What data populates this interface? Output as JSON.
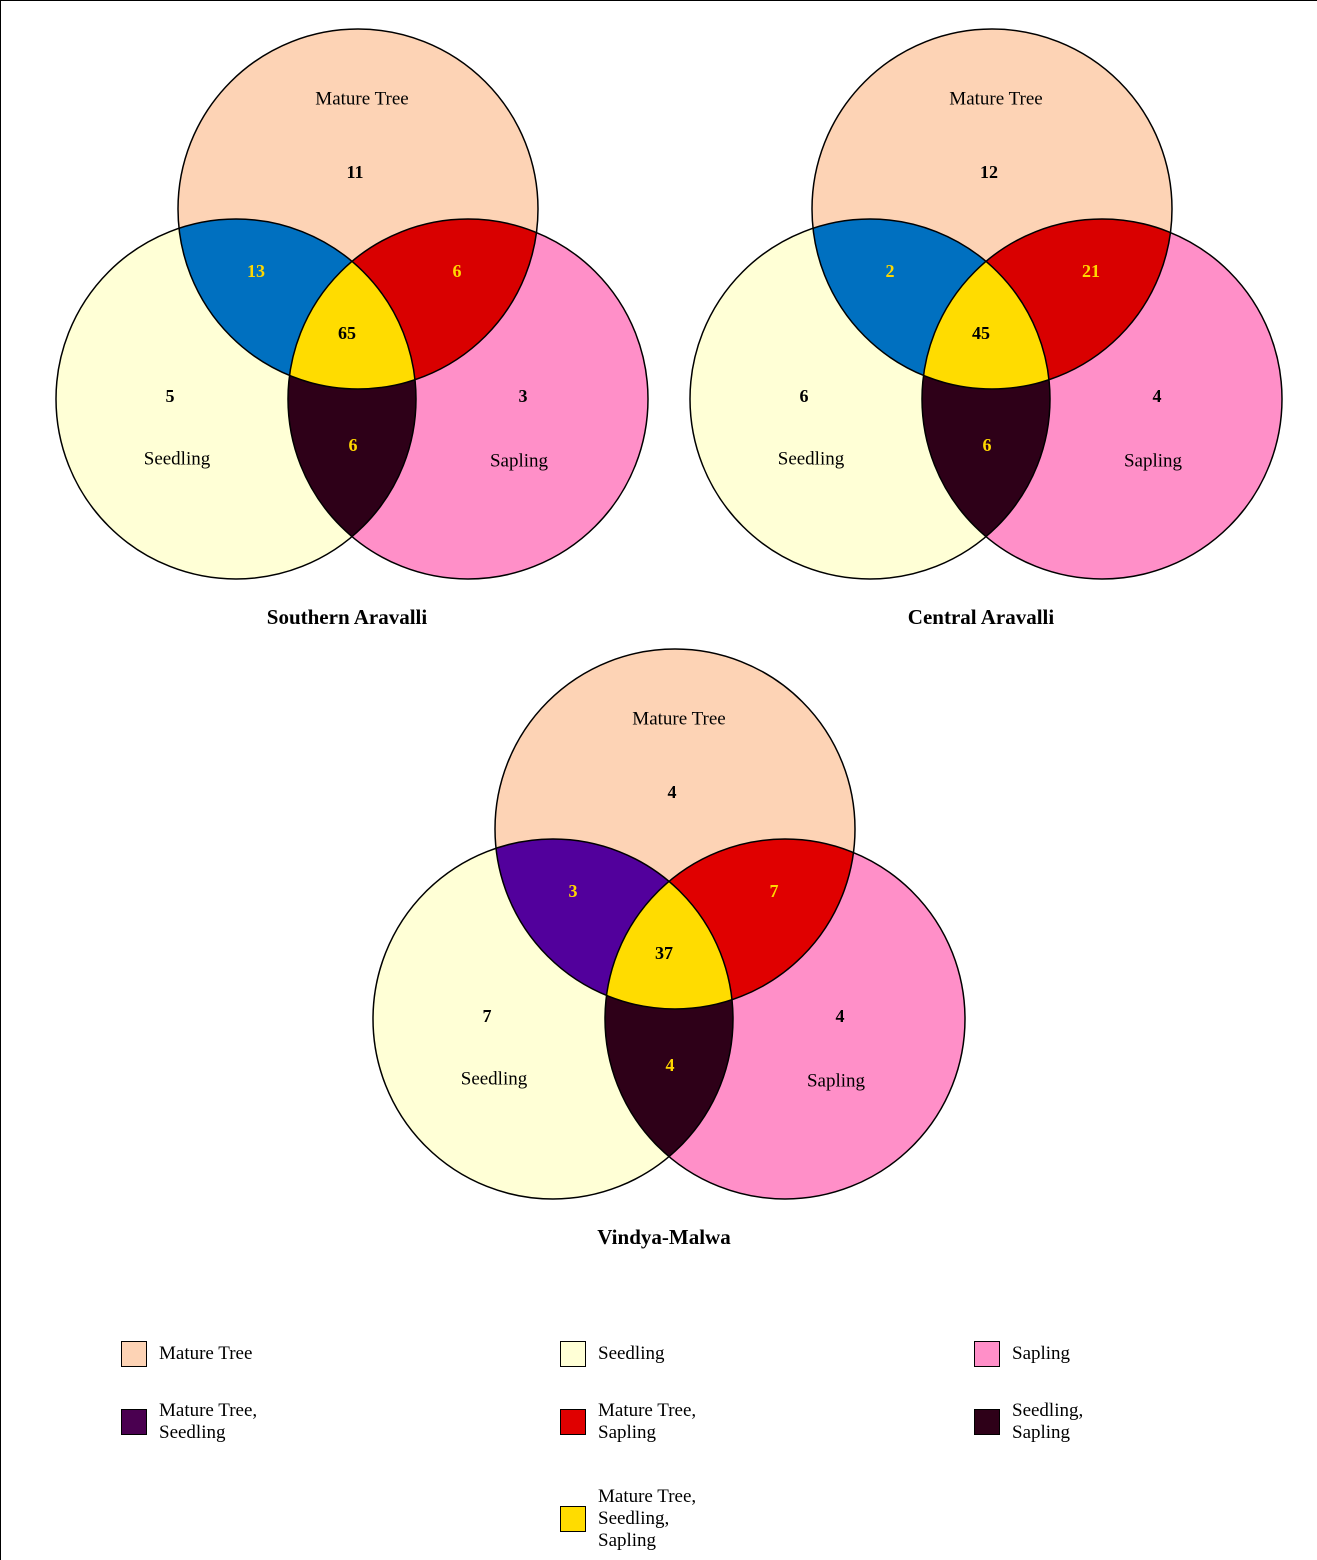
{
  "chart_data": [
    {
      "type": "venn",
      "title": "Southern Aravalli",
      "sets": [
        "Mature Tree",
        "Seedling",
        "Sapling"
      ],
      "regions": [
        {
          "value": 11,
          "color": "#fdd3b5",
          "label_color": "#000000"
        },
        {
          "value": 5,
          "color": "#ffffd6",
          "label_color": "#000000"
        },
        {
          "value": 3,
          "color": "#ff8fc8",
          "label_color": "#000000"
        },
        {
          "value": 13,
          "color": "#0070c0",
          "label_color": "#ffd700"
        },
        {
          "value": 6,
          "color": "#d90000",
          "label_color": "#ffd700"
        },
        {
          "value": 6,
          "color": "#2e0018",
          "label_color": "#ffd700"
        },
        {
          "value": 65,
          "color": "#ffdc00",
          "label_color": "#000000"
        }
      ]
    },
    {
      "type": "venn",
      "title": "Central Aravalli",
      "sets": [
        "Mature Tree",
        "Seedling",
        "Sapling"
      ],
      "regions": [
        {
          "value": 12,
          "color": "#fdd3b5",
          "label_color": "#000000"
        },
        {
          "value": 6,
          "color": "#ffffd6",
          "label_color": "#000000"
        },
        {
          "value": 4,
          "color": "#ff8fc8",
          "label_color": "#000000"
        },
        {
          "value": 2,
          "color": "#0070c0",
          "label_color": "#ffd700"
        },
        {
          "value": 21,
          "color": "#d90000",
          "label_color": "#ffd700"
        },
        {
          "value": 6,
          "color": "#2e0018",
          "label_color": "#ffd700"
        },
        {
          "value": 45,
          "color": "#ffdc00",
          "label_color": "#000000"
        }
      ]
    },
    {
      "type": "venn",
      "title": "Vindya-Malwa",
      "sets": [
        "Mature Tree",
        "Seedling",
        "Sapling"
      ],
      "regions": [
        {
          "value": 4,
          "color": "#fdd3b5",
          "label_color": "#000000"
        },
        {
          "value": 7,
          "color": "#ffffd6",
          "label_color": "#000000"
        },
        {
          "value": 4,
          "color": "#ff8fc8",
          "label_color": "#000000"
        },
        {
          "value": 3,
          "color": "#52009c",
          "label_color": "#ffd700"
        },
        {
          "value": 7,
          "color": "#e00000",
          "label_color": "#ffd700"
        },
        {
          "value": 4,
          "color": "#2e0018",
          "label_color": "#ffd700"
        },
        {
          "value": 37,
          "color": "#ffdc00",
          "label_color": "#000000"
        }
      ]
    }
  ],
  "legend": [
    {
      "label": "Mature Tree",
      "color": "#fdd3b5"
    },
    {
      "label": "Seedling",
      "color": "#ffffd6"
    },
    {
      "label": "Sapling",
      "color": "#ff8fc8"
    },
    {
      "label": "Mature Tree, Seedling",
      "color": "#4a0050"
    },
    {
      "label": "Mature Tree, Sapling",
      "color": "#e00000"
    },
    {
      "label": "Seedling, Sapling",
      "color": "#2e0018"
    },
    {
      "label": "Mature Tree, Seedling, Sapling",
      "color": "#ffdc00"
    }
  ]
}
